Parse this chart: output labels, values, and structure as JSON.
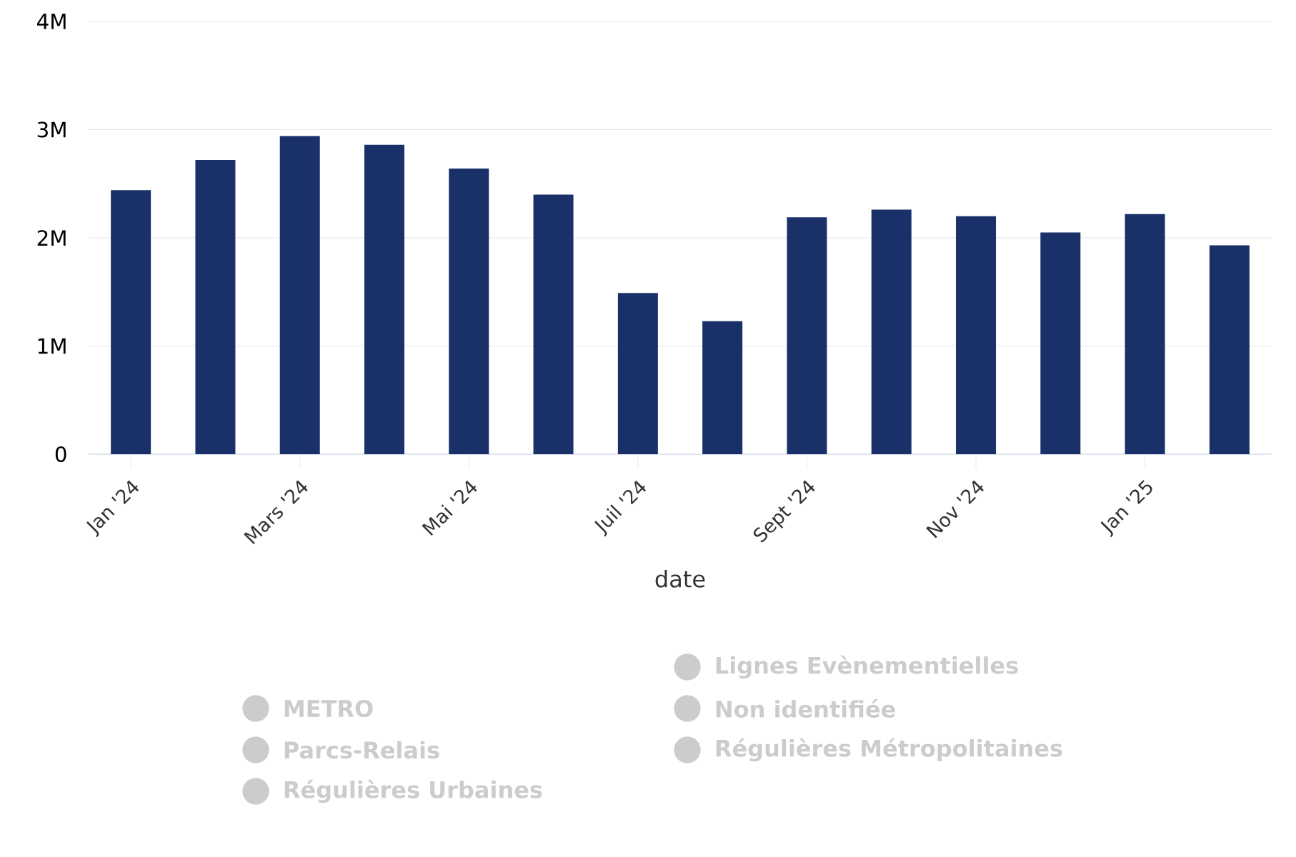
{
  "chart_data": {
    "type": "bar",
    "xlabel": "date",
    "categories": [
      "Jan '24",
      null,
      "Mars '24",
      null,
      "Mai '24",
      null,
      "Juil '24",
      null,
      "Sept '24",
      null,
      "Nov '24",
      null,
      "Jan '25",
      null
    ],
    "series": [
      {
        "color": "#1a3068",
        "values": [
          2440000,
          2720000,
          2940000,
          2860000,
          2640000,
          2400000,
          1490000,
          1230000,
          2190000,
          2260000,
          2200000,
          2050000,
          2220000,
          1930000
        ]
      },
      {
        "name": "Lignes Evènementielles",
        "color": "#cccccc",
        "values": [
          null,
          null,
          null,
          null,
          null,
          null,
          null,
          null,
          null,
          null,
          null,
          null,
          null,
          null
        ]
      },
      {
        "name": "METRO",
        "color": "#cccccc",
        "values": [
          null,
          null,
          null,
          null,
          null,
          null,
          null,
          null,
          null,
          null,
          null,
          null,
          null,
          null
        ]
      },
      {
        "name": "Non identifiée",
        "color": "#cccccc",
        "values": [
          null,
          null,
          null,
          null,
          null,
          null,
          null,
          null,
          null,
          null,
          null,
          null,
          null,
          null
        ]
      },
      {
        "name": "Parcs-Relais",
        "color": "#cccccc",
        "values": [
          null,
          null,
          null,
          null,
          null,
          null,
          null,
          null,
          null,
          null,
          null,
          null,
          null,
          null
        ]
      },
      {
        "name": "Régulières Métropolitaines",
        "color": "#cccccc",
        "values": [
          null,
          null,
          null,
          null,
          null,
          null,
          null,
          null,
          null,
          null,
          null,
          null,
          null,
          null
        ]
      },
      {
        "name": "Régulières Urbaines",
        "color": "#cccccc",
        "values": [
          null,
          null,
          null,
          null,
          null,
          null,
          null,
          null,
          null,
          null,
          null,
          null,
          null,
          null
        ]
      }
    ],
    "ylim": [
      0,
      4000000
    ],
    "yticks": [
      {
        "value": 0,
        "label": "0"
      },
      {
        "value": 1000000,
        "label": "1M"
      },
      {
        "value": 2000000,
        "label": "2M"
      },
      {
        "value": 3000000,
        "label": "3M"
      },
      {
        "value": 4000000,
        "label": "4M"
      }
    ],
    "grid": "y",
    "legend": "bottom"
  }
}
